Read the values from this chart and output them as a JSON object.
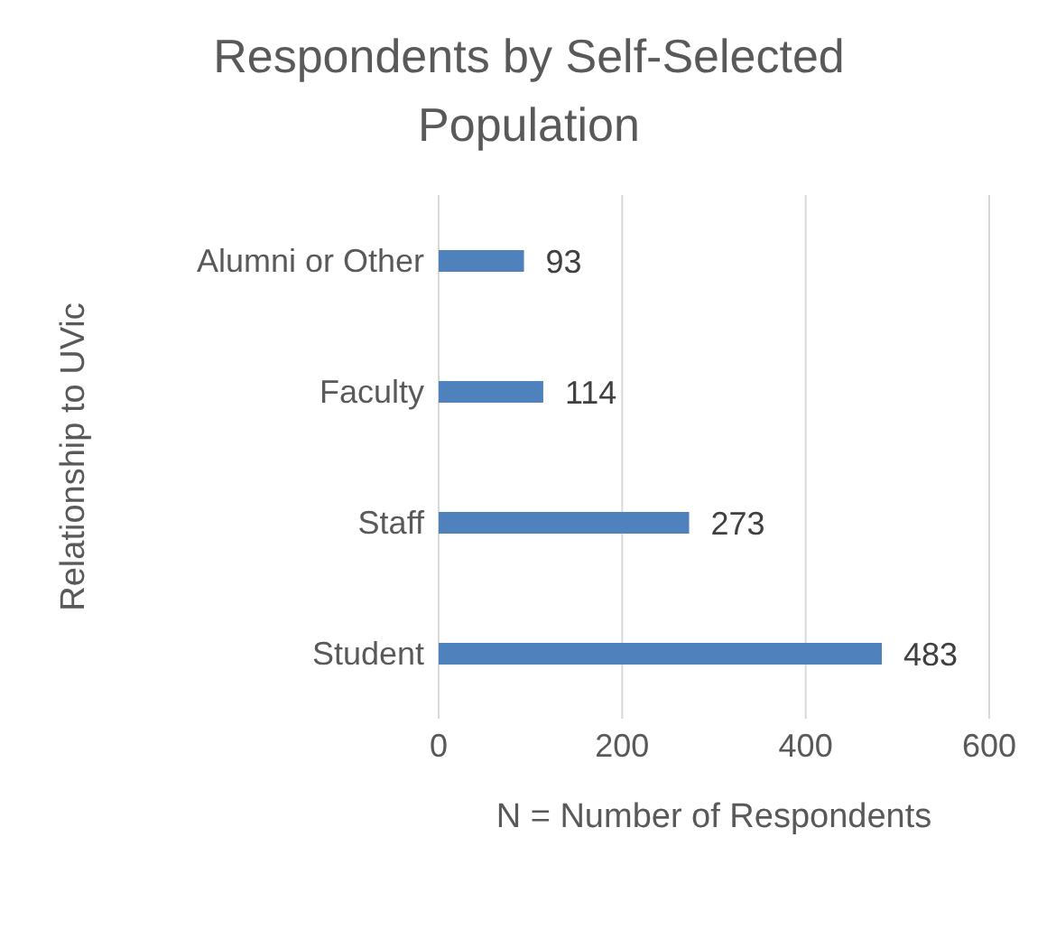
{
  "chart_data": {
    "type": "bar",
    "orientation": "horizontal",
    "title": "Respondents by Self-Selected Population",
    "xlabel": "N = Number of Respondents",
    "ylabel": "Relationship to UVic",
    "categories": [
      "Alumni or Other",
      "Faculty",
      "Staff",
      "Student"
    ],
    "values": [
      93,
      114,
      273,
      483
    ],
    "color": "#4f81bd",
    "xlim": [
      0,
      600
    ],
    "xticks": [
      0,
      200,
      400,
      600
    ],
    "grid": "x",
    "data_labels": true
  }
}
